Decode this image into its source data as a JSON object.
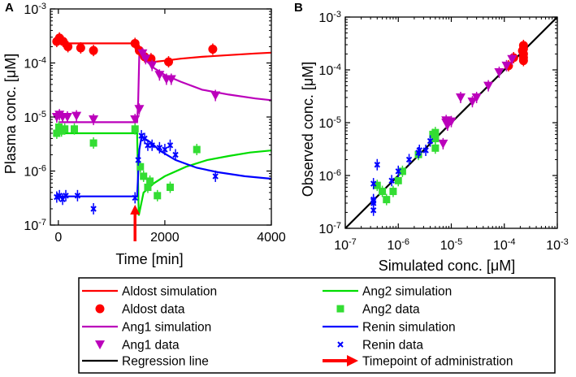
{
  "chart_data": [
    {
      "panel": "A",
      "type": "scatter",
      "xlabel": "Time [min]",
      "ylabel": "Plasma conc. [μM]",
      "xscale": "linear",
      "yscale": "log",
      "xlim": [
        -150,
        4000
      ],
      "ylim": [
        1e-07,
        0.001
      ],
      "xticks": [
        0,
        2000,
        4000
      ],
      "xtick_labels": [
        "0",
        "2000",
        "4000"
      ],
      "yticks": [
        1e-07,
        1e-06,
        1e-05,
        0.0001,
        0.001
      ],
      "ytick_labels": [
        {
          "base": "10",
          "exp": "-7"
        },
        {
          "base": "10",
          "exp": "-6"
        },
        {
          "base": "10",
          "exp": "-5"
        },
        {
          "base": "10",
          "exp": "-4"
        },
        {
          "base": "10",
          "exp": "-3"
        }
      ],
      "annotation": {
        "x": 1440,
        "label": "Timepoint of administration"
      },
      "series": [
        {
          "name": "Aldost simulation",
          "kind": "line",
          "color": "#ff0000",
          "x": [
            0,
            1440,
            1480,
            1550,
            1650,
            1800,
            2000,
            2300,
            2700,
            3200,
            3700,
            4000
          ],
          "y": [
            0.00023,
            0.00023,
            0.00023,
            0.000135,
            0.000115,
            0.000105,
            0.00011,
            0.00012,
            0.00013,
            0.00014,
            0.00015,
            0.000155
          ]
        },
        {
          "name": "Aldost data",
          "kind": "marker",
          "marker": "circle",
          "color": "#ff0000",
          "x": [
            -30,
            20,
            90,
            180,
            420,
            660,
            1440,
            1520,
            1620,
            1740,
            2070,
            2900
          ],
          "y": [
            0.00025,
            0.00029,
            0.00025,
            0.0002,
            0.00019,
            0.00017,
            0.00023,
            0.00017,
            0.00013,
            0.00012,
            0.000105,
            0.00018
          ]
        },
        {
          "name": "Ang1 simulation",
          "kind": "line",
          "color": "#bb00bb",
          "x": [
            0,
            1440,
            1480,
            1500,
            1520,
            1570,
            1650,
            1800,
            2000,
            2300,
            2700,
            3200,
            3700,
            4000
          ],
          "y": [
            8e-06,
            8e-06,
            8e-06,
            2e-05,
            0.00015,
            0.00014,
            0.00011,
            8e-05,
            6e-05,
            4.5e-05,
            3.2e-05,
            2.6e-05,
            2.2e-05,
            2.05e-05
          ]
        },
        {
          "name": "Ang1 data",
          "kind": "marker",
          "marker": "triangle-down",
          "color": "#bb00bb",
          "x": [
            -30,
            20,
            80,
            170,
            340,
            660,
            1440,
            1520,
            1580,
            1640,
            1760,
            1900,
            2030,
            2120,
            2950
          ],
          "y": [
            1e-05,
            1.1e-05,
            1e-05,
            1e-05,
            1.05e-05,
            9e-06,
            9e-06,
            1.4e-05,
            0.00015,
            0.00012,
            9e-05,
            6e-05,
            5e-05,
            5e-05,
            2.5e-05
          ]
        },
        {
          "name": "Ang2 simulation",
          "kind": "line",
          "color": "#00dd00",
          "x": [
            0,
            1440,
            1480,
            1510,
            1600,
            1800,
            2000,
            2400,
            2800,
            3200,
            3600,
            4000
          ],
          "y": [
            5e-06,
            5e-06,
            5e-06,
            1.5e-07,
            4e-07,
            6e-07,
            8e-07,
            1.2e-06,
            1.6e-06,
            1.9e-06,
            2.2e-06,
            2.4e-06
          ]
        },
        {
          "name": "Ang2 data",
          "kind": "marker",
          "marker": "square",
          "color": "#33dd33",
          "x": [
            -30,
            10,
            60,
            120,
            300,
            660,
            1440,
            1540,
            1600,
            1680,
            1720,
            1860,
            2100,
            2600
          ],
          "y": [
            5e-06,
            6.5e-06,
            5.5e-06,
            6e-06,
            6e-06,
            3.3e-06,
            6e-06,
            1.2e-06,
            8e-07,
            5e-07,
            6.5e-07,
            3.5e-07,
            5e-07,
            2.5e-06
          ]
        },
        {
          "name": "Renin simulation",
          "kind": "line",
          "color": "#0000ff",
          "x": [
            0,
            1440,
            1480,
            1520,
            1560,
            1620,
            1750,
            1900,
            2200,
            2600,
            3000,
            3500,
            4000
          ],
          "y": [
            3.4e-07,
            3.4e-07,
            3.4e-07,
            2.5e-06,
            4.2e-06,
            4e-06,
            3.3e-06,
            2.4e-06,
            1.6e-06,
            1.15e-06,
            9.5e-07,
            8e-07,
            7.2e-07
          ]
        },
        {
          "name": "Renin data",
          "kind": "marker",
          "marker": "x",
          "color": "#0000ff",
          "x": [
            -30,
            20,
            80,
            140,
            360,
            660,
            1440,
            1500,
            1560,
            1620,
            1680,
            1760,
            1900,
            2000,
            2100,
            2200,
            2950
          ],
          "y": [
            3.3e-07,
            3.5e-07,
            3e-07,
            3.5e-07,
            3.5e-07,
            2e-07,
            3.2e-07,
            1.6e-06,
            4.5e-06,
            4e-06,
            3e-06,
            3e-06,
            2.7e-06,
            2.5e-06,
            3e-06,
            2e-06,
            8e-07
          ]
        }
      ]
    },
    {
      "panel": "B",
      "type": "scatter",
      "xlabel": "Simulated conc. [μM]",
      "ylabel": "Observed conc. [μM]",
      "xscale": "log",
      "yscale": "log",
      "xlim": [
        1e-07,
        0.001
      ],
      "ylim": [
        1e-07,
        0.001
      ],
      "xticks": [
        1e-07,
        1e-06,
        1e-05,
        0.0001,
        0.001
      ],
      "xtick_labels": [
        {
          "base": "10",
          "exp": "-7"
        },
        {
          "base": "10",
          "exp": "-6"
        },
        {
          "base": "10",
          "exp": "-5"
        },
        {
          "base": "10",
          "exp": "-4"
        },
        {
          "base": "10",
          "exp": "-3"
        }
      ],
      "yticks": [
        1e-07,
        1e-06,
        1e-05,
        0.0001,
        0.001
      ],
      "ytick_labels": [
        {
          "base": "10",
          "exp": "-7"
        },
        {
          "base": "10",
          "exp": "-6"
        },
        {
          "base": "10",
          "exp": "-5"
        },
        {
          "base": "10",
          "exp": "-4"
        },
        {
          "base": "10",
          "exp": "-3"
        }
      ],
      "series": [
        {
          "name": "Regression line",
          "kind": "line",
          "color": "#000000",
          "x": [
            1e-07,
            0.001
          ],
          "y": [
            1e-07,
            0.001
          ]
        },
        {
          "name": "Aldost data",
          "kind": "marker",
          "marker": "circle",
          "color": "#ff0000",
          "x": [
            0.00023,
            0.00023,
            0.00023,
            0.00023,
            0.00022,
            0.00015,
            0.00023,
            0.00012
          ],
          "y": [
            0.00029,
            0.00025,
            0.0002,
            0.00017,
            0.00023,
            0.00017,
            0.00015,
            0.00012
          ]
        },
        {
          "name": "Ang1 data",
          "kind": "marker",
          "marker": "triangle-down",
          "color": "#bb00bb",
          "x": [
            8e-06,
            8e-06,
            8.5e-06,
            1e-05,
            7e-06,
            1.5e-05,
            2.5e-05,
            3e-05,
            5e-05,
            8e-05,
            0.00011,
            0.00014
          ],
          "y": [
            1.1e-05,
            1e-05,
            9e-06,
            1.05e-05,
            4e-06,
            3e-05,
            2.5e-05,
            3e-05,
            5e-05,
            9e-05,
            0.00012,
            0.00016
          ]
        },
        {
          "name": "Ang2 data",
          "kind": "marker",
          "marker": "square",
          "color": "#33dd33",
          "x": [
            5e-06,
            5e-06,
            5e-06,
            5e-06,
            4.5e-06,
            4e-07,
            5e-07,
            6e-07,
            8e-07,
            1.2e-06,
            2.4e-06,
            1e-06
          ],
          "y": [
            6.5e-06,
            5.5e-06,
            5e-06,
            3.3e-06,
            6e-06,
            6.5e-07,
            5e-07,
            3.5e-07,
            5e-07,
            1.2e-06,
            2.5e-06,
            8e-07
          ]
        },
        {
          "name": "Renin data",
          "kind": "marker",
          "marker": "x",
          "color": "#0000ff",
          "x": [
            3.4e-07,
            3.4e-07,
            3.4e-07,
            3.4e-07,
            3.4e-07,
            4e-07,
            1e-06,
            1.6e-06,
            2.4e-06,
            3.3e-06,
            4e-06,
            2.5e-06,
            7.5e-07
          ],
          "y": [
            3.3e-07,
            3.5e-07,
            3e-07,
            2.2e-07,
            7e-07,
            1.6e-06,
            1.2e-06,
            2e-06,
            2.7e-06,
            3e-06,
            4.5e-06,
            3e-06,
            8e-07
          ]
        }
      ]
    }
  ],
  "legend": {
    "left": [
      {
        "label": "Aldost simulation",
        "kind": "line",
        "color": "#ff0000"
      },
      {
        "label": "Aldost data",
        "kind": "circle",
        "color": "#ff0000"
      },
      {
        "label": "Ang1 simulation",
        "kind": "line",
        "color": "#bb00bb"
      },
      {
        "label": "Ang1 data",
        "kind": "triangle-down",
        "color": "#bb00bb"
      },
      {
        "label": "Regression line",
        "kind": "line",
        "color": "#000000"
      }
    ],
    "right": [
      {
        "label": "Ang2 simulation",
        "kind": "line",
        "color": "#00dd00"
      },
      {
        "label": "Ang2 data",
        "kind": "square",
        "color": "#33dd33"
      },
      {
        "label": "Renin simulation",
        "kind": "line",
        "color": "#0000ff"
      },
      {
        "label": "Renin data",
        "kind": "x",
        "color": "#0000ff"
      },
      {
        "label": "Timepoint of administration",
        "kind": "arrow",
        "color": "#ff0000"
      }
    ]
  }
}
